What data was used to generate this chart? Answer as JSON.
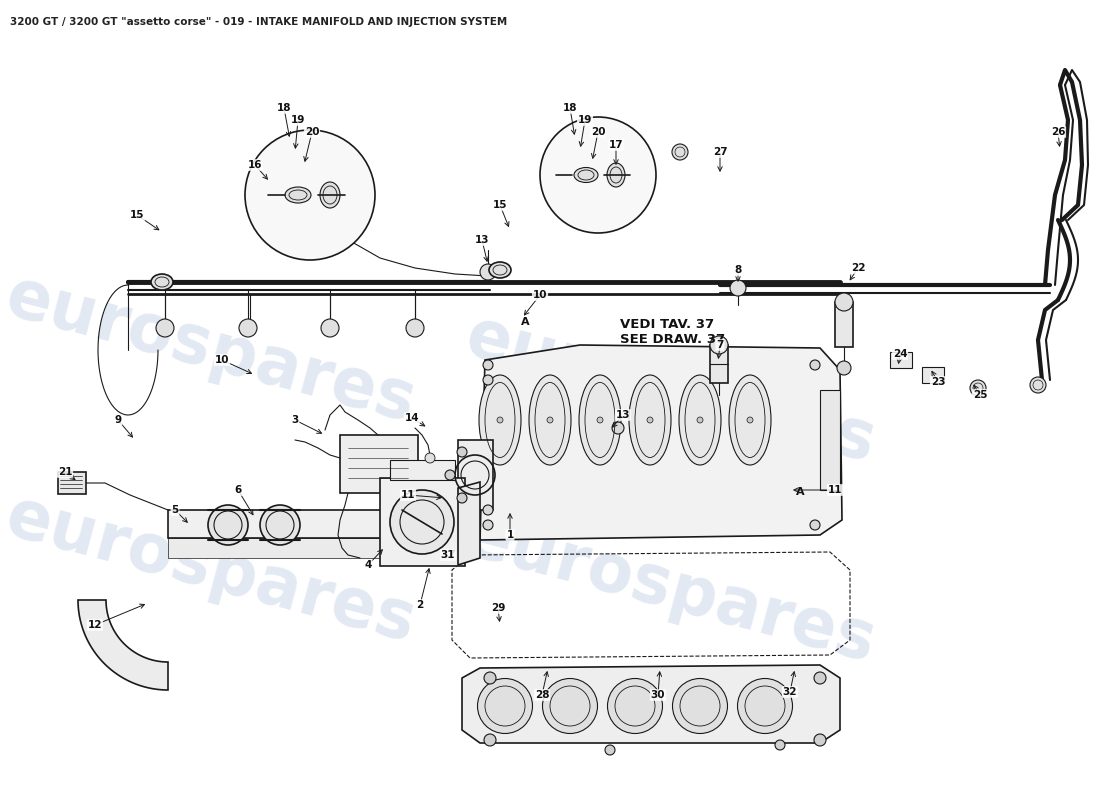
{
  "title": "3200 GT / 3200 GT \"assetto corse\" - 019 - INTAKE MANIFOLD AND INJECTION SYSTEM",
  "title_fontsize": 7.5,
  "title_color": "#222222",
  "background_color": "#ffffff",
  "watermark_text": "eurospares",
  "watermark_color": "#c8d4e8",
  "watermark_fontsize": 48,
  "annotation_text": "VEDI TAV. 37\nSEE DRAW. 37",
  "label_A": "A",
  "line_color": "#1a1a1a",
  "label_color": "#111111",
  "label_fontsize": 7.5,
  "callouts": [
    [
      510,
      535,
      510,
      510,
      "1"
    ],
    [
      420,
      605,
      430,
      565,
      "2"
    ],
    [
      295,
      420,
      325,
      435,
      "3"
    ],
    [
      368,
      565,
      385,
      547,
      "4"
    ],
    [
      175,
      510,
      190,
      525,
      "5"
    ],
    [
      238,
      490,
      255,
      518,
      "6"
    ],
    [
      720,
      345,
      718,
      362,
      "7"
    ],
    [
      738,
      270,
      738,
      285,
      "8"
    ],
    [
      118,
      420,
      135,
      440,
      "9"
    ],
    [
      222,
      360,
      255,
      375,
      "10"
    ],
    [
      540,
      295,
      522,
      318,
      "10"
    ],
    [
      408,
      495,
      445,
      498,
      "11"
    ],
    [
      835,
      490,
      790,
      490,
      "11"
    ],
    [
      95,
      625,
      148,
      603,
      "12"
    ],
    [
      482,
      240,
      488,
      265,
      "13"
    ],
    [
      623,
      415,
      610,
      430,
      "13"
    ],
    [
      412,
      418,
      428,
      428,
      "14"
    ],
    [
      137,
      215,
      162,
      232,
      "15"
    ],
    [
      500,
      205,
      510,
      230,
      "15"
    ],
    [
      255,
      165,
      270,
      182,
      "16"
    ],
    [
      616,
      145,
      616,
      168,
      "17"
    ],
    [
      284,
      108,
      290,
      140,
      "18"
    ],
    [
      570,
      108,
      575,
      138,
      "18"
    ],
    [
      298,
      120,
      295,
      152,
      "19"
    ],
    [
      585,
      120,
      580,
      150,
      "19"
    ],
    [
      312,
      132,
      304,
      165,
      "20"
    ],
    [
      598,
      132,
      592,
      162,
      "20"
    ],
    [
      65,
      472,
      78,
      482,
      "21"
    ],
    [
      858,
      268,
      848,
      283,
      "22"
    ],
    [
      938,
      382,
      930,
      368,
      "23"
    ],
    [
      900,
      354,
      898,
      367,
      "24"
    ],
    [
      980,
      395,
      972,
      382,
      "25"
    ],
    [
      1058,
      132,
      1060,
      150,
      "26"
    ],
    [
      720,
      152,
      720,
      175,
      "27"
    ],
    [
      542,
      695,
      548,
      668,
      "28"
    ],
    [
      498,
      608,
      500,
      625,
      "29"
    ],
    [
      658,
      695,
      660,
      668,
      "30"
    ],
    [
      448,
      555,
      458,
      548,
      "31"
    ],
    [
      790,
      692,
      795,
      668,
      "32"
    ]
  ]
}
